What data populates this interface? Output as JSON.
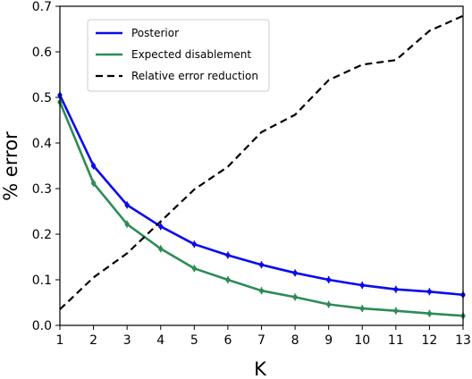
{
  "chart_data": {
    "type": "line",
    "xlabel": "K",
    "ylabel": "% error",
    "xlim": [
      1,
      13
    ],
    "ylim": [
      0,
      0.7
    ],
    "x": [
      1,
      2,
      3,
      4,
      5,
      6,
      7,
      8,
      9,
      10,
      11,
      12,
      13
    ],
    "xticks": [
      "1",
      "2",
      "3",
      "4",
      "5",
      "6",
      "7",
      "8",
      "9",
      "10",
      "11",
      "12",
      "13"
    ],
    "yticks": [
      "0.0",
      "0.1",
      "0.2",
      "0.3",
      "0.4",
      "0.5",
      "0.6",
      "0.7"
    ],
    "grid": false,
    "legend_position": "upper-left",
    "series": [
      {
        "name": "Posterior",
        "color": "#0a0aee",
        "style": "solid",
        "markers": true,
        "values": [
          0.505,
          0.35,
          0.264,
          0.217,
          0.178,
          0.154,
          0.133,
          0.115,
          0.1,
          0.088,
          0.079,
          0.074,
          0.067
        ]
      },
      {
        "name": "Expected disablement",
        "color": "#2e8b57",
        "style": "solid",
        "markers": true,
        "values": [
          0.49,
          0.312,
          0.222,
          0.168,
          0.125,
          0.1,
          0.076,
          0.062,
          0.046,
          0.037,
          0.032,
          0.026,
          0.021
        ]
      },
      {
        "name": "Relative error reduction",
        "color": "#000000",
        "style": "dashed",
        "markers": false,
        "values": [
          0.035,
          0.105,
          0.158,
          0.228,
          0.298,
          0.348,
          0.424,
          0.462,
          0.538,
          0.572,
          0.582,
          0.646,
          0.679
        ]
      }
    ]
  }
}
